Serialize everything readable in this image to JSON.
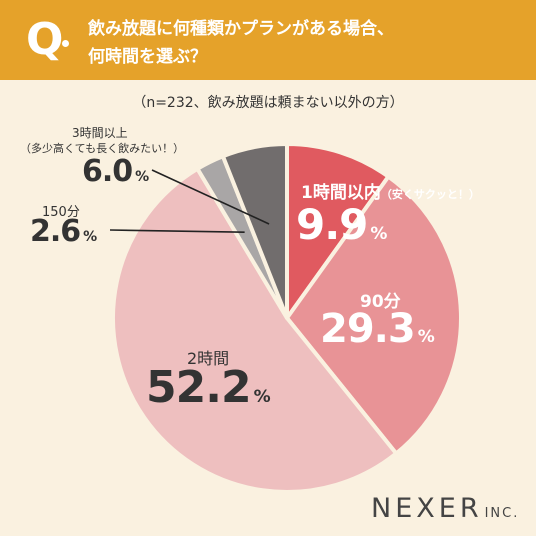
{
  "header": {
    "q_mark": "Q",
    "question_line1": "飲み放題に何種類かプランがある場合、",
    "question_line2": "何時間を選ぶ？"
  },
  "subtitle": "（n=232、飲み放題は頼まない以外の方）",
  "chart_data": {
    "type": "pie",
    "title": "飲み放題に何種類かプランがある場合、何時間を選ぶ？",
    "subtitle": "（n=232、飲み放題は頼まない以外の方）",
    "unit": "%",
    "start_angle": "12 o'clock",
    "direction": "clockwise",
    "slices": [
      {
        "label": "1時間以内",
        "note": "（安くサクッと！）",
        "value": 9.9,
        "value_text": "9.9",
        "color": "#e05a60"
      },
      {
        "label": "90分",
        "note": "",
        "value": 29.3,
        "value_text": "29.3",
        "color": "#e89396"
      },
      {
        "label": "2時間",
        "note": "",
        "value": 52.2,
        "value_text": "52.2",
        "color": "#eebfbf"
      },
      {
        "label": "150分",
        "note": "",
        "value": 2.6,
        "value_text": "2.6",
        "color": "#a9a6a6"
      },
      {
        "label": "3時間以上",
        "note": "（多少高くても長く飲みたい！）",
        "value": 6.0,
        "value_text": "6.0",
        "color": "#716d6d"
      }
    ]
  },
  "logo": {
    "name": "NEXER",
    "suffix": "INC."
  }
}
